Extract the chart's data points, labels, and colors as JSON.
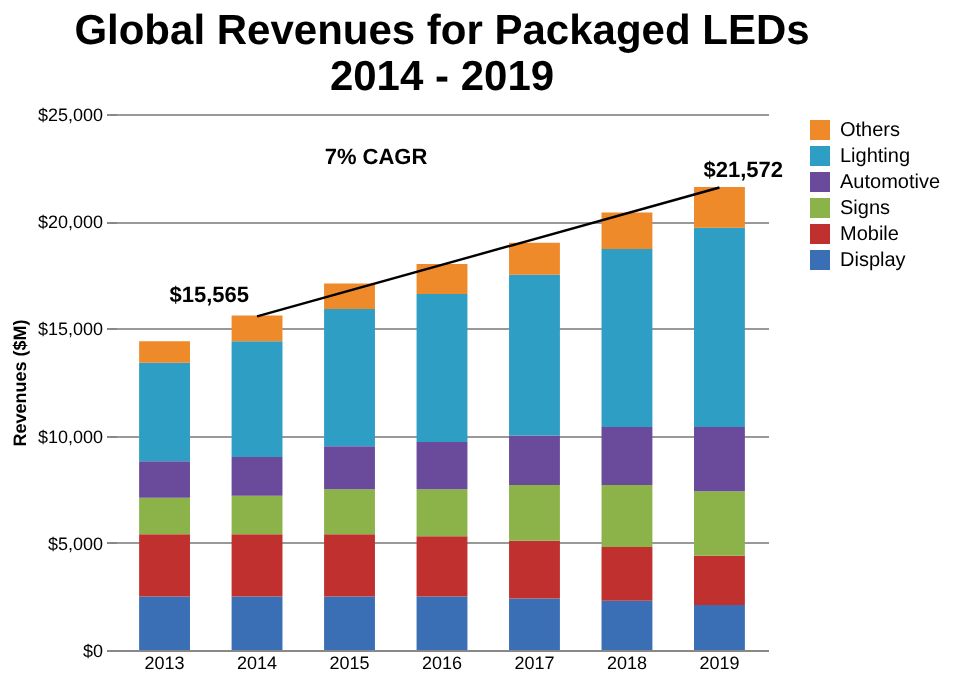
{
  "chart_data": {
    "type": "bar",
    "title": "Global Revenues for Packaged LEDs\n2014 - 2019",
    "ylabel": "Revenues ($M)",
    "categories": [
      "2013",
      "2014",
      "2015",
      "2016",
      "2017",
      "2018",
      "2019"
    ],
    "stacked": true,
    "series": [
      {
        "name": "Display",
        "color": "#3a6fb5",
        "values": [
          2500,
          2500,
          2500,
          2500,
          2400,
          2300,
          2100
        ]
      },
      {
        "name": "Mobile",
        "color": "#c0302f",
        "values": [
          2900,
          2900,
          2900,
          2800,
          2700,
          2500,
          2300
        ]
      },
      {
        "name": "Signs",
        "color": "#8cb34a",
        "values": [
          1700,
          1800,
          2100,
          2200,
          2600,
          2900,
          3000
        ]
      },
      {
        "name": "Automotive",
        "color": "#6a4a9a",
        "values": [
          1700,
          1800,
          2000,
          2200,
          2300,
          2700,
          3000
        ]
      },
      {
        "name": "Lighting",
        "color": "#2e9ec4",
        "values": [
          4600,
          5400,
          6400,
          6900,
          7500,
          8300,
          9300
        ]
      },
      {
        "name": "Others",
        "color": "#ee8a2a",
        "values": [
          1000,
          1200,
          1200,
          1400,
          1500,
          1700,
          1900
        ]
      }
    ],
    "ylim": [
      0,
      25000
    ],
    "yticks": [
      {
        "value": 0,
        "label": "$0"
      },
      {
        "value": 5000,
        "label": "$5,000"
      },
      {
        "value": 10000,
        "label": "$10,000"
      },
      {
        "value": 15000,
        "label": "$15,000"
      },
      {
        "value": 20000,
        "label": "$20,000"
      },
      {
        "value": 25000,
        "label": "$25,000"
      }
    ],
    "grid": "y",
    "legend": "right",
    "annotations": [
      "7% CAGR",
      {
        "text": "$15,565",
        "x": "2014",
        "y": 15565
      },
      {
        "text": "$21,572",
        "x": "2019",
        "y": 21572
      }
    ]
  }
}
